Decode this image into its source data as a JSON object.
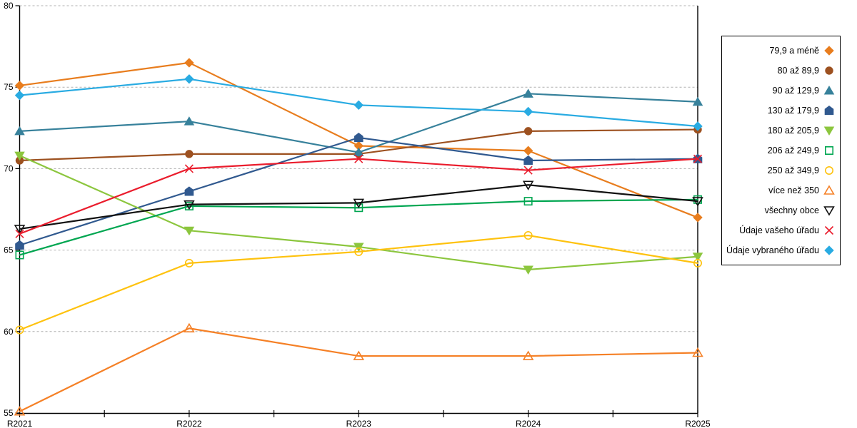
{
  "chart_data": {
    "type": "line",
    "title": "",
    "xlabel": "",
    "ylabel": "",
    "x_categories": [
      "R2021",
      "R2022",
      "R2023",
      "R2024",
      "R2025"
    ],
    "ylim": [
      55,
      80
    ],
    "y_ticks": [
      80,
      75,
      70,
      65,
      60,
      55
    ],
    "grid": "horizontal-dashed",
    "grid_color": "#b0b0b0",
    "axis_color": "#000000",
    "legend_position": "right-box",
    "series": [
      {
        "name": "79,9 a méně",
        "marker": "diamond",
        "fill": "filled",
        "color": "#e87d1e",
        "values": [
          75.1,
          76.5,
          71.4,
          71.1,
          67.0
        ]
      },
      {
        "name": "80 až 89,9",
        "marker": "circle",
        "fill": "filled",
        "color": "#9d5120",
        "values": [
          70.5,
          70.9,
          70.9,
          72.3,
          72.4
        ]
      },
      {
        "name": "90 až 129,9",
        "marker": "triangle-up",
        "fill": "filled",
        "color": "#37819b",
        "values": [
          72.3,
          72.9,
          71.0,
          74.6,
          74.1
        ]
      },
      {
        "name": "130 až 179,9",
        "marker": "pentagon",
        "fill": "filled",
        "color": "#30598f",
        "values": [
          65.3,
          68.6,
          71.9,
          70.5,
          70.6
        ]
      },
      {
        "name": "180 až 205,9",
        "marker": "triangle-down",
        "fill": "filled",
        "color": "#8cc63e",
        "values": [
          70.8,
          66.2,
          65.2,
          63.8,
          64.6
        ]
      },
      {
        "name": "206 až 249,9",
        "marker": "square",
        "fill": "open",
        "color": "#00a651",
        "values": [
          64.7,
          67.7,
          67.6,
          68.0,
          68.1
        ]
      },
      {
        "name": "250 až 349,9",
        "marker": "circle",
        "fill": "open",
        "color": "#fec20e",
        "values": [
          60.1,
          64.2,
          64.9,
          65.9,
          64.2
        ]
      },
      {
        "name": "více než 350",
        "marker": "triangle-up",
        "fill": "open",
        "color": "#f58026",
        "values": [
          55.1,
          60.2,
          58.5,
          58.5,
          58.7
        ]
      },
      {
        "name": "všechny obce",
        "marker": "triangle-down",
        "fill": "open",
        "color": "#111111",
        "values": [
          66.3,
          67.8,
          67.9,
          69.0,
          68.0
        ]
      },
      {
        "name": "Údaje vašeho úřadu",
        "marker": "x",
        "fill": "open",
        "color": "#ea1c2c",
        "values": [
          66.0,
          70.0,
          70.6,
          69.9,
          70.6
        ]
      },
      {
        "name": "Údaje vybraného úřadu",
        "marker": "diamond",
        "fill": "filled",
        "color": "#29abe2",
        "values": [
          74.5,
          75.5,
          73.9,
          73.5,
          72.6
        ]
      }
    ]
  }
}
